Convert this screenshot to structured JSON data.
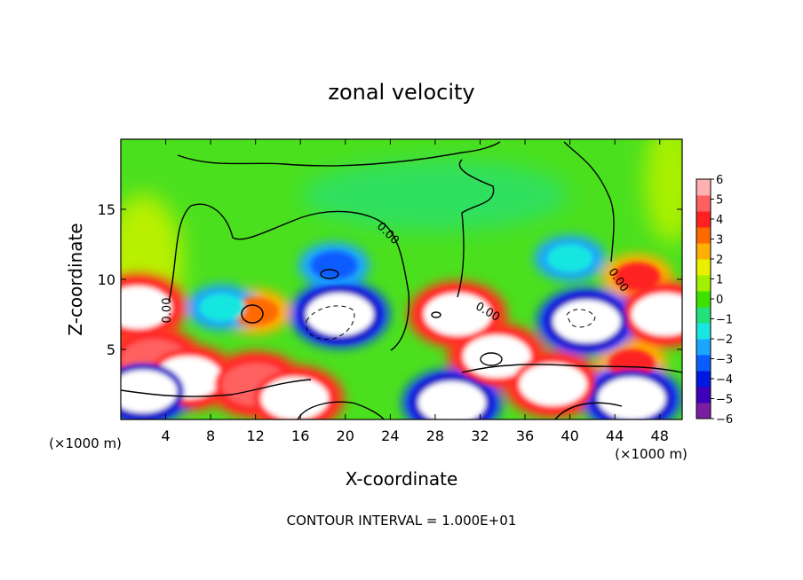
{
  "chart_data": {
    "type": "heatmap",
    "title": "zonal velocity",
    "xlabel": "X-coordinate",
    "ylabel": "Z-coordinate",
    "x_unit": "(×1000 m)",
    "x_ticks": [
      4,
      8,
      12,
      16,
      20,
      24,
      28,
      32,
      36,
      40,
      44,
      48
    ],
    "y_ticks": [
      5,
      10,
      15
    ],
    "xlim": [
      0,
      50
    ],
    "ylim": [
      0,
      20
    ],
    "colorbar": {
      "ticks": [
        6,
        5,
        4,
        3,
        2,
        1,
        0,
        -1,
        -2,
        -3,
        -4,
        -5,
        -6
      ],
      "range": [
        -6,
        6
      ],
      "colors": [
        "#7a1fa2",
        "#3b00b8",
        "#0018e0",
        "#0a5cff",
        "#1aa6ff",
        "#19e6e0",
        "#22e07a",
        "#3fe000",
        "#a0f000",
        "#e8f000",
        "#ffb000",
        "#ff6a00",
        "#ff2020",
        "#ff6060",
        "#ffb0b0"
      ]
    },
    "contour_label": "0.00",
    "footnote": "CONTOUR INTERVAL = 1.000E+01",
    "features": [
      {
        "kind": "positive",
        "x": 1.5,
        "z": 8.0,
        "value": 6
      },
      {
        "kind": "positive",
        "x": 3.0,
        "z": 4.2,
        "value": 5
      },
      {
        "kind": "positive",
        "x": 6.0,
        "z": 3.0,
        "value": 6
      },
      {
        "kind": "positive",
        "x": 12.0,
        "z": 2.5,
        "value": 5
      },
      {
        "kind": "positive",
        "x": 15.5,
        "z": 1.5,
        "value": 6
      },
      {
        "kind": "positive",
        "x": 12.0,
        "z": 7.7,
        "value": 3
      },
      {
        "kind": "positive",
        "x": 30.0,
        "z": 7.5,
        "value": 6
      },
      {
        "kind": "positive",
        "x": 33.5,
        "z": 4.5,
        "value": 6
      },
      {
        "kind": "positive",
        "x": 38.5,
        "z": 2.5,
        "value": 6
      },
      {
        "kind": "positive",
        "x": 46.0,
        "z": 10.2,
        "value": 4
      },
      {
        "kind": "positive",
        "x": 48.5,
        "z": 7.5,
        "value": 6
      },
      {
        "kind": "positive",
        "x": 45.5,
        "z": 4.0,
        "value": 4
      },
      {
        "kind": "negative",
        "x": 19.5,
        "z": 7.5,
        "value": -6
      },
      {
        "kind": "negative",
        "x": 41.5,
        "z": 7.0,
        "value": -6
      },
      {
        "kind": "negative",
        "x": 2.0,
        "z": 2.0,
        "value": -6
      },
      {
        "kind": "negative",
        "x": 29.5,
        "z": 1.2,
        "value": -6
      },
      {
        "kind": "negative",
        "x": 45.5,
        "z": 1.5,
        "value": -6
      },
      {
        "kind": "negative",
        "x": 19.0,
        "z": 11.0,
        "value": -3
      },
      {
        "kind": "negative",
        "x": 9.0,
        "z": 8.0,
        "value": -2
      },
      {
        "kind": "negative",
        "x": 40.0,
        "z": 11.5,
        "value": -2
      }
    ]
  }
}
